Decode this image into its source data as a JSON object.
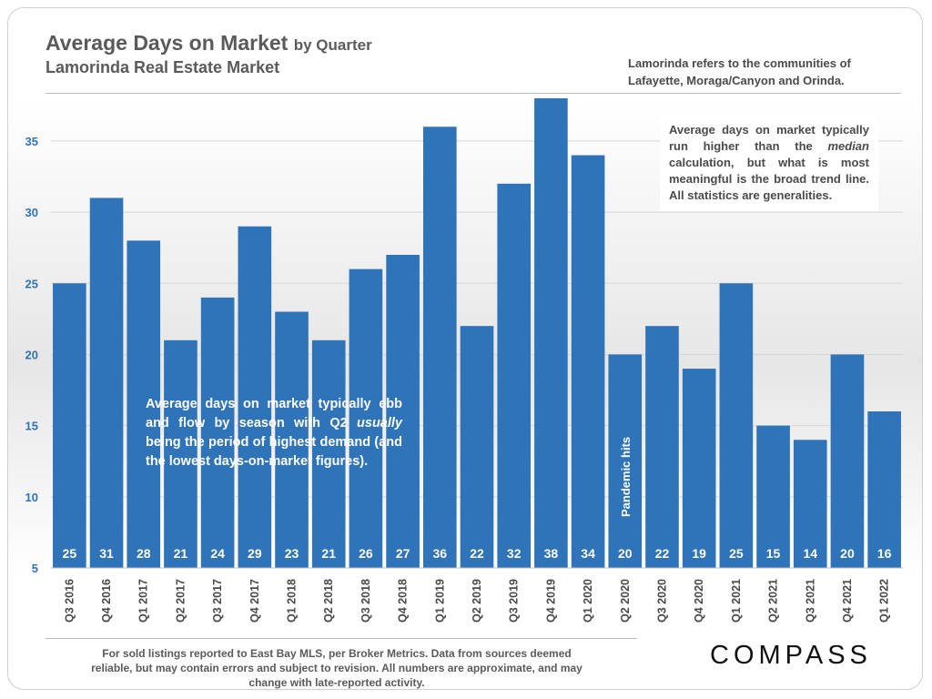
{
  "header": {
    "title_main": "Average Days on Market",
    "title_suffix": "by Quarter",
    "subtitle": "Lamorinda Real Estate Market",
    "region_note": "Lamorinda refers to the communities of Lafayette, Moraga/Canyon and Orinda."
  },
  "annotations": {
    "median_note_1": "Average days on market typically run higher than the",
    "median_note_em": "median",
    "median_note_2": "calculation, but what is most meaningful is the broad trend line. All statistics are generalities.",
    "season_note_1": "Average days on market typically ebb and flow by season with Q2",
    "season_note_em": "usually",
    "season_note_2": "being the period of highest demand (and the lowest days-on-market figures).",
    "pandemic_label": "Pandemic hits"
  },
  "footer": {
    "disclaimer": "For sold listings reported to East Bay MLS, per Broker Metrics. Data from sources deemed reliable, but may contain errors and subject to revision. All numbers are approximate, and may change with late-reported activity.",
    "logo": "COMPASS"
  },
  "colors": {
    "bar": "#2f73b8",
    "text": "#5a5a5a",
    "tick": "#2f73b8"
  },
  "chart_data": {
    "type": "bar",
    "title": "Average Days on Market by Quarter",
    "xlabel": "",
    "ylabel": "",
    "ylim": [
      5,
      38
    ],
    "yticks": [
      5,
      10,
      15,
      20,
      25,
      30,
      35
    ],
    "grid": true,
    "categories": [
      "Q3 2016",
      "Q4 2016",
      "Q1 2017",
      "Q2 2017",
      "Q3 2017",
      "Q4 2017",
      "Q1 2018",
      "Q2 2018",
      "Q3 2018",
      "Q4 2018",
      "Q1 2019",
      "Q2 2019",
      "Q3 2019",
      "Q4 2019",
      "Q1 2020",
      "Q2 2020",
      "Q3 2020",
      "Q4 2020",
      "Q1 2021",
      "Q2 2021",
      "Q3 2021",
      "Q4 2021",
      "Q1 2022"
    ],
    "values": [
      25,
      31,
      28,
      21,
      24,
      29,
      23,
      21,
      26,
      27,
      36,
      22,
      32,
      38,
      34,
      20,
      22,
      19,
      25,
      15,
      14,
      20,
      16
    ]
  }
}
